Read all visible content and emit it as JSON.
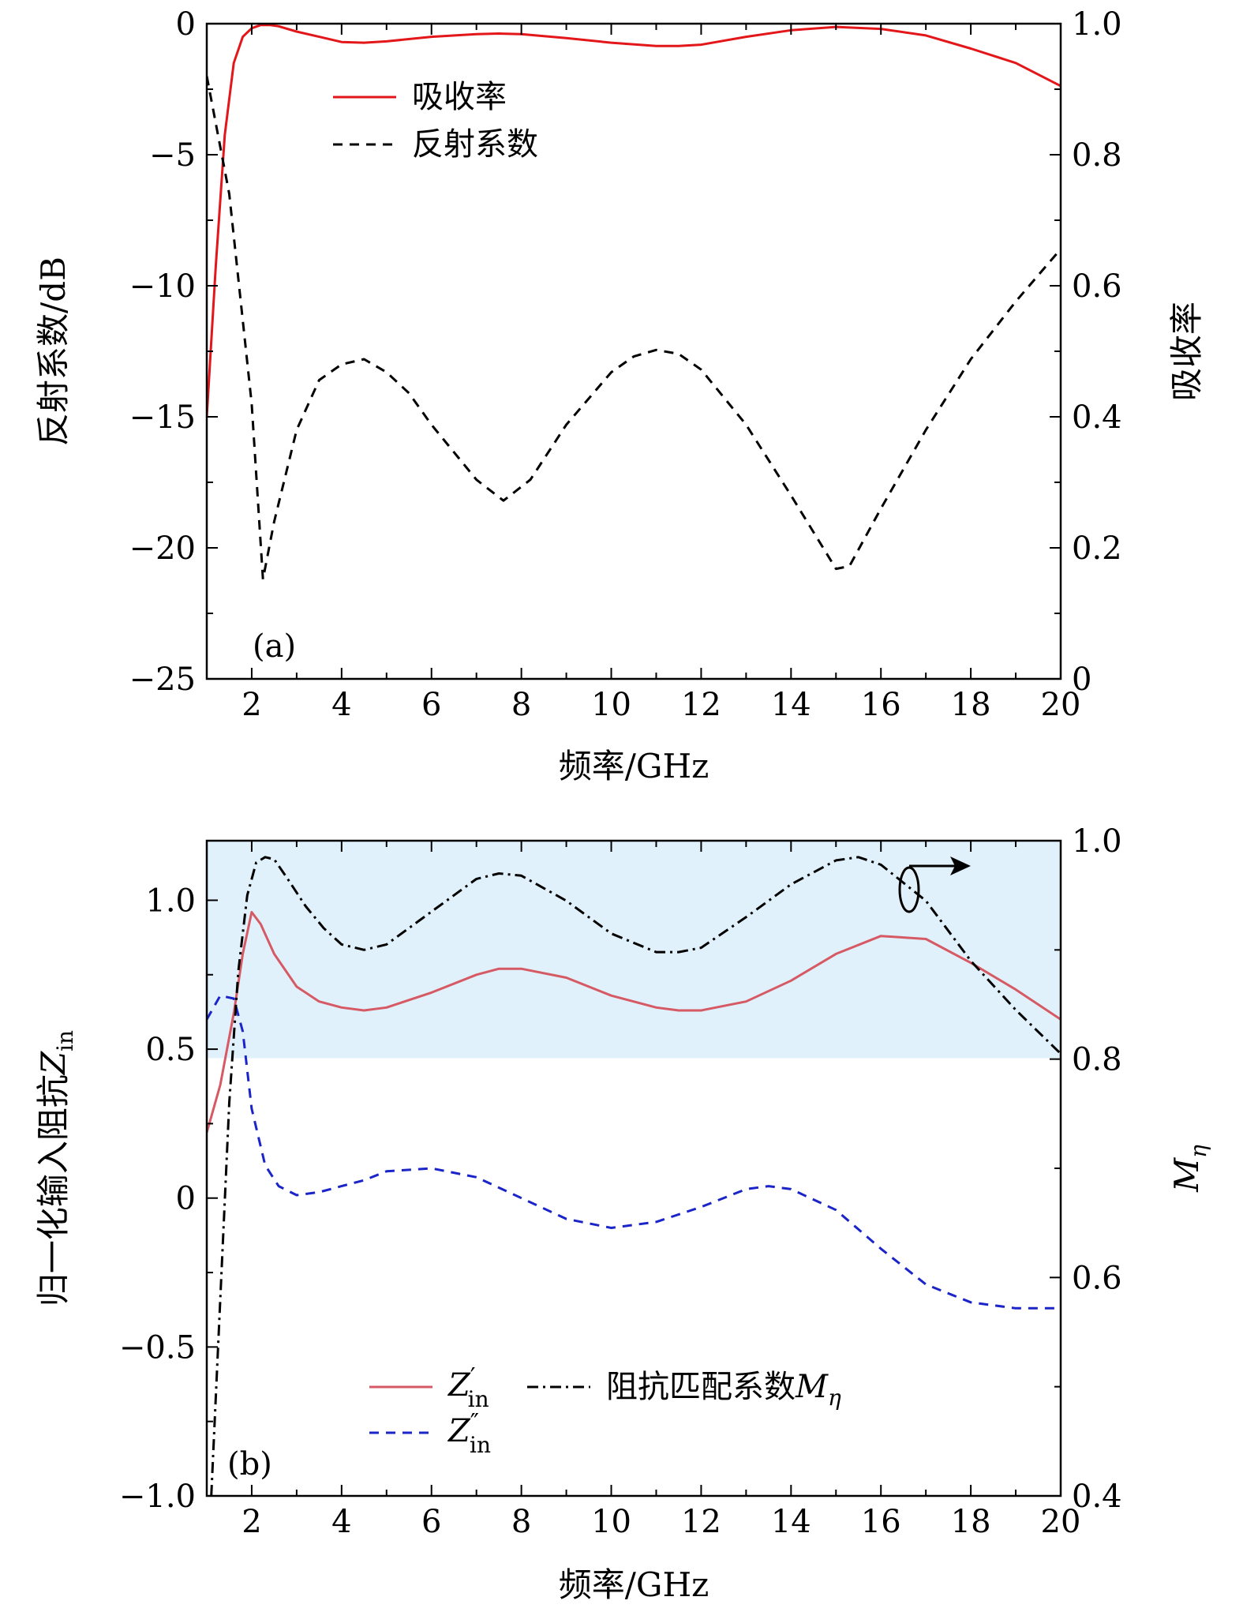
{
  "chart_data": [
    {
      "id": "a",
      "type": "line",
      "panel_label": "(a)",
      "xlabel": "频率/GHz",
      "ylabel_left": "反射系数/dB",
      "ylabel_right": "吸收率",
      "xlim": [
        1,
        20
      ],
      "ylim_left": [
        -25,
        0
      ],
      "ylim_right": [
        0,
        1.0
      ],
      "x_ticks": [
        2,
        4,
        6,
        8,
        10,
        12,
        14,
        16,
        18,
        20
      ],
      "x_tick_labels": [
        "2",
        "4",
        "6",
        "8",
        "10",
        "12",
        "14",
        "16",
        "18",
        "20"
      ],
      "y_left_ticks": [
        0,
        -5,
        -10,
        -15,
        -20,
        -25
      ],
      "y_left_tick_labels": [
        "0",
        "−5",
        "−10",
        "−15",
        "−20",
        "−25"
      ],
      "y_right_ticks": [
        1.0,
        0.8,
        0.6,
        0.4,
        0.2,
        0
      ],
      "y_right_tick_labels": [
        "1.0",
        "0.8",
        "0.6",
        "0.4",
        "0.2",
        "0"
      ],
      "legend_position": "upper-center",
      "series": [
        {
          "name": "吸收率",
          "axis": "right",
          "color": "#e3161a",
          "style": "solid",
          "x": [
            1.0,
            1.2,
            1.4,
            1.6,
            1.8,
            2.0,
            2.2,
            2.4,
            2.6,
            3.0,
            3.5,
            4.0,
            4.5,
            5.0,
            6.0,
            7.0,
            7.5,
            8.0,
            9.0,
            10.0,
            11.0,
            11.5,
            12.0,
            13.0,
            14.0,
            15.0,
            16.0,
            17.0,
            18.0,
            19.0,
            20.0
          ],
          "y": [
            0.4,
            0.63,
            0.83,
            0.94,
            0.98,
            0.993,
            0.998,
            0.998,
            0.996,
            0.988,
            0.98,
            0.972,
            0.971,
            0.973,
            0.98,
            0.984,
            0.985,
            0.984,
            0.978,
            0.971,
            0.966,
            0.966,
            0.968,
            0.98,
            0.99,
            0.995,
            0.992,
            0.982,
            0.962,
            0.94,
            0.905
          ]
        },
        {
          "name": "反射系数",
          "axis": "left",
          "color": "#000000",
          "style": "dashed",
          "x": [
            1.0,
            1.5,
            2.0,
            2.25,
            2.5,
            3.0,
            3.5,
            4.0,
            4.5,
            5.0,
            5.5,
            6.0,
            7.0,
            7.6,
            8.2,
            9.0,
            10.0,
            10.5,
            11.0,
            11.5,
            12.0,
            13.0,
            14.0,
            15.0,
            15.3,
            16.0,
            17.0,
            18.0,
            19.0,
            20.0
          ],
          "y": [
            -2.0,
            -6.5,
            -14.5,
            -21.2,
            -19.0,
            -15.5,
            -13.6,
            -13.0,
            -12.8,
            -13.3,
            -14.1,
            -15.3,
            -17.4,
            -18.2,
            -17.4,
            -15.3,
            -13.3,
            -12.7,
            -12.45,
            -12.6,
            -13.2,
            -15.3,
            -18.0,
            -20.8,
            -20.7,
            -18.5,
            -15.5,
            -12.8,
            -10.6,
            -8.6
          ]
        }
      ]
    },
    {
      "id": "b",
      "type": "line",
      "panel_label": "(b)",
      "xlabel": "频率/GHz",
      "ylabel_left_text": "归一化输入阻抗",
      "ylabel_left_symbol": "Z",
      "ylabel_left_subscript": "in",
      "ylabel_right_symbol": "M",
      "ylabel_right_subscript": "η",
      "xlim": [
        1,
        20
      ],
      "ylim_left": [
        -1.0,
        1.2
      ],
      "ylim_right": [
        0.4,
        1.0
      ],
      "x_ticks": [
        2,
        4,
        6,
        8,
        10,
        12,
        14,
        16,
        18,
        20
      ],
      "x_tick_labels": [
        "2",
        "4",
        "6",
        "8",
        "10",
        "12",
        "14",
        "16",
        "18",
        "20"
      ],
      "y_left_ticks": [
        1.0,
        0.5,
        0,
        -0.5,
        -1.0
      ],
      "y_left_tick_labels": [
        "1.0",
        "0.5",
        "0",
        "−0.5",
        "−1.0"
      ],
      "y_right_ticks": [
        1.0,
        0.8,
        0.6,
        0.4
      ],
      "y_right_tick_labels": [
        "1.0",
        "0.8",
        "0.6",
        "0.4"
      ],
      "shaded_band_left": [
        0.47,
        1.2
      ],
      "shade_color": "#e1f1fc",
      "arrow_annotation": "right-axis indicator on Mη curve near 16–18 GHz",
      "legend_position": "lower-center",
      "series": [
        {
          "name": "Z′in",
          "legend_symbol": "Z",
          "legend_prime": "′",
          "legend_subscript": "in",
          "axis": "left",
          "color": "#d65a64",
          "style": "solid",
          "x": [
            1.0,
            1.3,
            1.6,
            1.8,
            2.0,
            2.2,
            2.5,
            3.0,
            3.5,
            4.0,
            4.5,
            5.0,
            6.0,
            7.0,
            7.5,
            8.0,
            9.0,
            10.0,
            11.0,
            11.5,
            12.0,
            13.0,
            14.0,
            15.0,
            16.0,
            17.0,
            18.0,
            19.0,
            20.0
          ],
          "y": [
            0.22,
            0.38,
            0.62,
            0.82,
            0.96,
            0.92,
            0.82,
            0.71,
            0.66,
            0.64,
            0.63,
            0.64,
            0.69,
            0.75,
            0.77,
            0.77,
            0.74,
            0.68,
            0.64,
            0.63,
            0.63,
            0.66,
            0.73,
            0.82,
            0.88,
            0.87,
            0.79,
            0.7,
            0.6
          ]
        },
        {
          "name": "Z″in",
          "legend_symbol": "Z",
          "legend_prime": "″",
          "legend_subscript": "in",
          "axis": "left",
          "color": "#1a24c8",
          "style": "dashed",
          "x": [
            1.0,
            1.3,
            1.6,
            1.8,
            2.0,
            2.3,
            2.6,
            3.0,
            3.5,
            4.0,
            4.5,
            5.0,
            6.0,
            7.0,
            8.0,
            9.0,
            10.0,
            11.0,
            12.0,
            13.0,
            13.5,
            14.0,
            15.0,
            16.0,
            17.0,
            18.0,
            19.0,
            20.0
          ],
          "y": [
            0.6,
            0.68,
            0.67,
            0.56,
            0.3,
            0.11,
            0.04,
            0.01,
            0.02,
            0.04,
            0.06,
            0.09,
            0.1,
            0.07,
            0.0,
            -0.07,
            -0.1,
            -0.08,
            -0.03,
            0.03,
            0.04,
            0.03,
            -0.04,
            -0.17,
            -0.29,
            -0.35,
            -0.37,
            -0.37
          ]
        },
        {
          "name": "阻抗匹配系数",
          "legend_symbol": "M",
          "legend_subscript": "η",
          "axis": "right",
          "color": "#000000",
          "style": "dashdot",
          "x": [
            1.1,
            1.3,
            1.5,
            1.7,
            1.9,
            2.1,
            2.3,
            2.5,
            2.8,
            3.2,
            3.6,
            4.0,
            4.5,
            5.0,
            6.0,
            7.0,
            7.5,
            8.0,
            9.0,
            10.0,
            11.0,
            11.5,
            12.0,
            13.0,
            14.0,
            15.0,
            15.5,
            16.0,
            17.0,
            18.0,
            19.0,
            20.0
          ],
          "y": [
            0.4,
            0.58,
            0.76,
            0.88,
            0.95,
            0.98,
            0.985,
            0.983,
            0.965,
            0.94,
            0.92,
            0.905,
            0.9,
            0.905,
            0.935,
            0.965,
            0.97,
            0.968,
            0.945,
            0.915,
            0.898,
            0.898,
            0.902,
            0.93,
            0.96,
            0.982,
            0.985,
            0.978,
            0.945,
            0.89,
            0.845,
            0.805
          ]
        }
      ]
    }
  ]
}
